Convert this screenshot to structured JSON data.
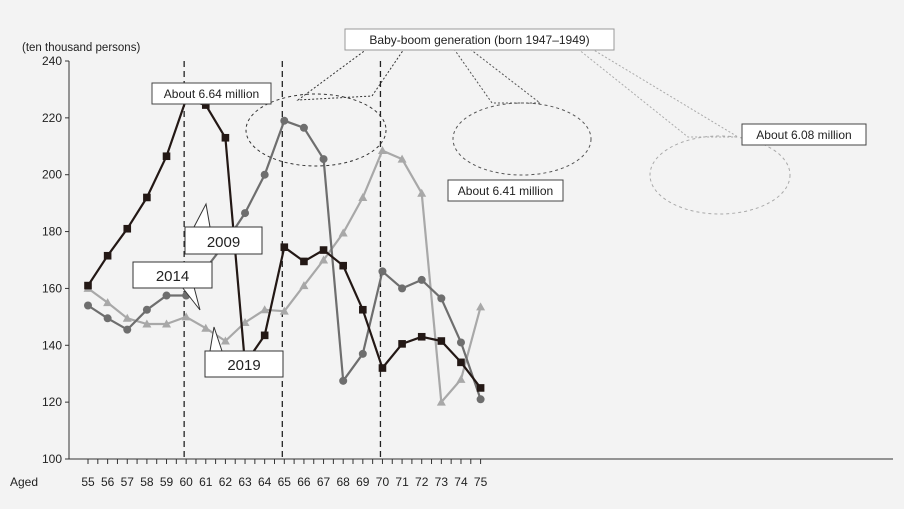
{
  "chart_data": {
    "type": "line",
    "ylabel": "(ten thousand persons)",
    "xlabel_prefix": "Aged",
    "x": [
      55,
      56,
      57,
      58,
      59,
      60,
      61,
      62,
      63,
      64,
      65,
      66,
      67,
      68,
      69,
      70,
      71,
      72,
      73,
      74,
      75
    ],
    "x_labels": [
      "55",
      "56",
      "57",
      "58",
      "59",
      "60",
      "61",
      "62",
      "63",
      "64",
      "65",
      "66",
      "67",
      "68",
      "69",
      "70",
      "71",
      "72",
      "73",
      "74",
      "75"
    ],
    "ylim": [
      100,
      240
    ],
    "y_ticks": [
      100,
      120,
      140,
      160,
      180,
      200,
      220,
      240
    ],
    "y_tick_labels": [
      "100",
      "120",
      "140",
      "160",
      "180",
      "200",
      "220",
      "240"
    ],
    "vertical_lines_at": [
      60,
      65,
      70
    ],
    "series": [
      {
        "name": "2009",
        "marker": "square",
        "color": "#231815",
        "values": [
          161,
          171.5,
          181,
          192,
          206.5,
          226.5,
          224.5,
          213,
          133.5,
          143.5,
          174.5,
          169.5,
          173.5,
          168,
          152.5,
          132,
          140.5,
          143,
          141.5,
          134,
          125
        ]
      },
      {
        "name": "2014",
        "marker": "circle",
        "color": "#6e6e6e",
        "values": [
          154,
          149.5,
          145.5,
          152.5,
          157.5,
          157.5,
          167,
          176,
          186.5,
          200,
          219,
          216.5,
          205.5,
          127.5,
          137,
          166,
          160,
          163,
          156.5,
          141,
          121
        ]
      },
      {
        "name": "2019",
        "marker": "triangle",
        "color": "#a8a8a8",
        "values": [
          160,
          155,
          149.5,
          147.5,
          147.5,
          150,
          146,
          141.5,
          148,
          152.5,
          152,
          161,
          170,
          179.5,
          192,
          208.5,
          205.5,
          193.5,
          120,
          128,
          153.5
        ]
      }
    ],
    "annotations": {
      "headline": "Baby-boom generation (born 1947–1949)",
      "peak_2009": "About 6.64 million",
      "peak_2014": "About 6.41 million",
      "peak_2019": "About 6.08 million"
    }
  }
}
